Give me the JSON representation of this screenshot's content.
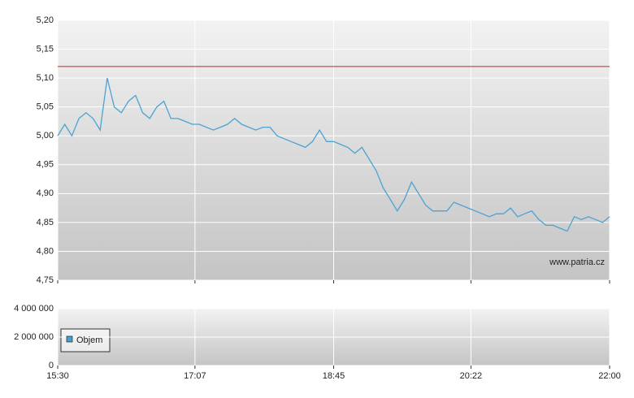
{
  "chart_data": [
    {
      "type": "line",
      "x": [
        "15:30",
        "15:35",
        "15:40",
        "15:45",
        "15:50",
        "15:55",
        "16:00",
        "16:05",
        "16:10",
        "16:15",
        "16:20",
        "16:25",
        "16:30",
        "16:35",
        "16:40",
        "16:45",
        "16:50",
        "16:55",
        "17:00",
        "17:05",
        "17:10",
        "17:15",
        "17:20",
        "17:25",
        "17:30",
        "17:35",
        "17:40",
        "17:45",
        "17:50",
        "17:55",
        "18:00",
        "18:05",
        "18:10",
        "18:15",
        "18:20",
        "18:25",
        "18:30",
        "18:35",
        "18:40",
        "18:45",
        "18:50",
        "18:55",
        "19:00",
        "19:05",
        "19:10",
        "19:15",
        "19:20",
        "19:25",
        "19:30",
        "19:35",
        "19:40",
        "19:45",
        "19:50",
        "19:55",
        "20:00",
        "20:05",
        "20:10",
        "20:15",
        "20:20",
        "20:25",
        "20:30",
        "20:35",
        "20:40",
        "20:45",
        "20:50",
        "20:55",
        "21:00",
        "21:05",
        "21:10",
        "21:15",
        "21:20",
        "21:25",
        "21:30",
        "21:35",
        "21:40",
        "21:45",
        "21:50",
        "21:55",
        "22:00"
      ],
      "values": [
        5.0,
        5.02,
        5.0,
        5.03,
        5.04,
        5.03,
        5.01,
        5.1,
        5.05,
        5.04,
        5.06,
        5.07,
        5.04,
        5.03,
        5.05,
        5.06,
        5.03,
        5.03,
        5.025,
        5.02,
        5.02,
        5.015,
        5.01,
        5.015,
        5.02,
        5.03,
        5.02,
        5.015,
        5.01,
        5.015,
        5.015,
        5.0,
        4.995,
        4.99,
        4.985,
        4.98,
        4.99,
        5.01,
        4.99,
        4.99,
        4.985,
        4.98,
        4.97,
        4.98,
        4.96,
        4.94,
        4.91,
        4.89,
        4.87,
        4.89,
        4.92,
        4.9,
        4.88,
        4.87,
        4.87,
        4.87,
        4.885,
        4.88,
        4.875,
        4.87,
        4.865,
        4.86,
        4.865,
        4.865,
        4.875,
        4.86,
        4.865,
        4.87,
        4.855,
        4.845,
        4.845,
        4.84,
        4.835,
        4.86,
        4.855,
        4.86,
        4.855,
        4.85,
        4.86
      ],
      "color": "#4aa3d3",
      "reference_line": 5.12,
      "reference_color": "#cc2222",
      "xlim": [
        "15:30",
        "22:00"
      ],
      "ylim": [
        4.75,
        5.2
      ],
      "yticks": [
        {
          "value": 4.75,
          "label": "4,75"
        },
        {
          "value": 4.8,
          "label": "4,80"
        },
        {
          "value": 4.85,
          "label": "4,85"
        },
        {
          "value": 4.9,
          "label": "4,90"
        },
        {
          "value": 4.95,
          "label": "4,95"
        },
        {
          "value": 5.0,
          "label": "5,00"
        },
        {
          "value": 5.05,
          "label": "5,05"
        },
        {
          "value": 5.1,
          "label": "5,10"
        },
        {
          "value": 5.15,
          "label": "5,15"
        },
        {
          "value": 5.2,
          "label": "5,20"
        }
      ],
      "xticks": [
        "15:30",
        "17:07",
        "18:45",
        "20:22",
        "22:00"
      ],
      "grid": true,
      "annotation": "www.patria.cz"
    },
    {
      "type": "bar",
      "series": [
        {
          "name": "Objem",
          "color": "#4a9fd0"
        }
      ],
      "xlim": [
        "15:30",
        "22:00"
      ],
      "ylim": [
        0,
        4000000
      ],
      "yticks": [
        0,
        {
          "value": 2000000,
          "label": "2 000 000"
        },
        {
          "value": 4000000,
          "label": "4 000 000"
        }
      ],
      "xticks": [
        "15:30",
        "17:07",
        "18:45",
        "20:22",
        "22:00"
      ],
      "grid": true,
      "legend": "bottom-left"
    }
  ]
}
